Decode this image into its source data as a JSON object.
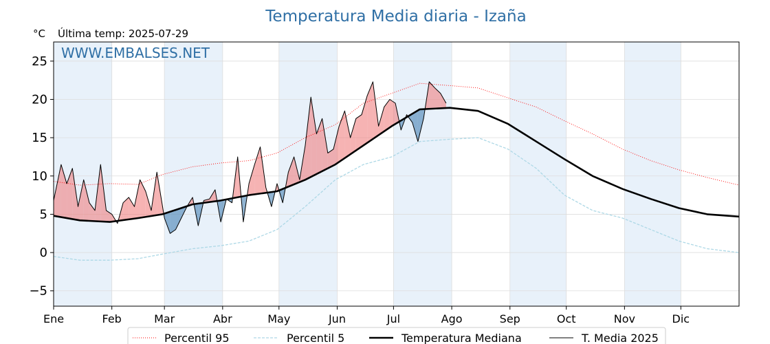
{
  "chart_data": {
    "type": "line",
    "title": "Temperatura Media diaria - Izaña",
    "unit": "°C",
    "subtitle": "Última temp: 2025-07-29",
    "watermark": "WWW.EMBALSES.NET",
    "xlabel": "",
    "ylabel": "",
    "ylim": [
      -7,
      27.5
    ],
    "yticks": [
      -5,
      0,
      5,
      10,
      15,
      20,
      25
    ],
    "month_labels": [
      "Ene",
      "Feb",
      "Mar",
      "Abr",
      "May",
      "Jun",
      "Jul",
      "Ago",
      "Sep",
      "Oct",
      "Nov",
      "Dic"
    ],
    "month_start_days": [
      1,
      32,
      60,
      91,
      121,
      152,
      182,
      213,
      244,
      274,
      305,
      335
    ],
    "x_range_days": [
      1,
      366
    ],
    "grid": true,
    "legend_position": "bottom-center",
    "colors": {
      "p95": "#ff0000",
      "p5": "#add8e6",
      "median": "#000000",
      "year": "#000000",
      "above_fill": "#f08080",
      "below_fill": "#4682b4",
      "month_band": "#e8f1fa",
      "title": "#2f6fa5",
      "watermark": "#2f6fa5"
    },
    "series": [
      {
        "name": "Percentil 95",
        "style": "dotted",
        "x": [
          1,
          15,
          31,
          46,
          59,
          75,
          90,
          105,
          120,
          135,
          151,
          166,
          181,
          196,
          212,
          227,
          243,
          258,
          273,
          288,
          304,
          319,
          334,
          349,
          366
        ],
        "values": [
          9.3,
          8.8,
          9.0,
          8.9,
          10.2,
          11.2,
          11.7,
          12.0,
          13.0,
          15.0,
          16.7,
          19.5,
          20.8,
          22.1,
          21.8,
          21.5,
          20.2,
          19.0,
          17.2,
          15.5,
          13.5,
          12.0,
          10.8,
          9.8,
          8.8
        ]
      },
      {
        "name": "Percentil 5",
        "style": "dashed",
        "x": [
          1,
          15,
          31,
          46,
          59,
          75,
          90,
          105,
          120,
          135,
          151,
          166,
          181,
          196,
          212,
          227,
          243,
          258,
          273,
          288,
          304,
          319,
          334,
          349,
          366
        ],
        "values": [
          -0.5,
          -1.0,
          -1.0,
          -0.8,
          -0.2,
          0.5,
          0.9,
          1.5,
          3.0,
          6.0,
          9.5,
          11.5,
          12.5,
          14.5,
          14.8,
          15.0,
          13.5,
          11.0,
          7.5,
          5.5,
          4.5,
          3.0,
          1.5,
          0.5,
          0.0
        ]
      },
      {
        "name": "Temperatura Mediana",
        "style": "solid-thick",
        "x": [
          1,
          15,
          31,
          46,
          59,
          75,
          90,
          105,
          120,
          135,
          151,
          166,
          181,
          196,
          212,
          227,
          243,
          258,
          273,
          288,
          304,
          319,
          334,
          349,
          366
        ],
        "values": [
          4.8,
          4.2,
          4.0,
          4.5,
          5.0,
          6.3,
          6.8,
          7.5,
          8.0,
          9.5,
          11.5,
          14.0,
          16.5,
          18.7,
          18.9,
          18.5,
          16.8,
          14.5,
          12.2,
          10.0,
          8.3,
          7.0,
          5.8,
          5.0,
          4.7
        ]
      },
      {
        "name": "T. Media 2025",
        "style": "solid-thin",
        "x": [
          1,
          5,
          8,
          11,
          14,
          17,
          20,
          23,
          26,
          29,
          32,
          35,
          38,
          41,
          44,
          47,
          50,
          53,
          56,
          60,
          63,
          66,
          69,
          72,
          75,
          78,
          81,
          84,
          87,
          90,
          93,
          96,
          99,
          102,
          105,
          108,
          111,
          114,
          117,
          120,
          123,
          126,
          129,
          132,
          135,
          138,
          141,
          144,
          147,
          150,
          153,
          156,
          159,
          162,
          165,
          168,
          171,
          174,
          177,
          180,
          183,
          186,
          189,
          192,
          195,
          198,
          201,
          204,
          207,
          210
        ],
        "values": [
          6.8,
          11.5,
          9.0,
          11.0,
          6.0,
          9.5,
          6.5,
          5.5,
          11.5,
          5.5,
          5.0,
          3.8,
          6.5,
          7.2,
          6.0,
          9.5,
          8.0,
          5.5,
          10.5,
          4.5,
          2.5,
          3.0,
          4.5,
          6.0,
          7.2,
          3.5,
          6.8,
          7.0,
          8.2,
          4.0,
          7.0,
          6.5,
          12.5,
          4.0,
          9.0,
          11.5,
          13.8,
          8.5,
          6.0,
          9.0,
          6.5,
          10.5,
          12.5,
          9.5,
          14.0,
          20.3,
          15.5,
          17.5,
          13.0,
          13.5,
          16.5,
          18.5,
          15.0,
          17.5,
          18.0,
          20.5,
          22.3,
          16.5,
          19.0,
          20.0,
          19.5,
          16.0,
          18.0,
          17.0,
          14.5,
          17.5,
          22.3,
          21.5,
          20.8,
          19.5
        ]
      }
    ]
  }
}
